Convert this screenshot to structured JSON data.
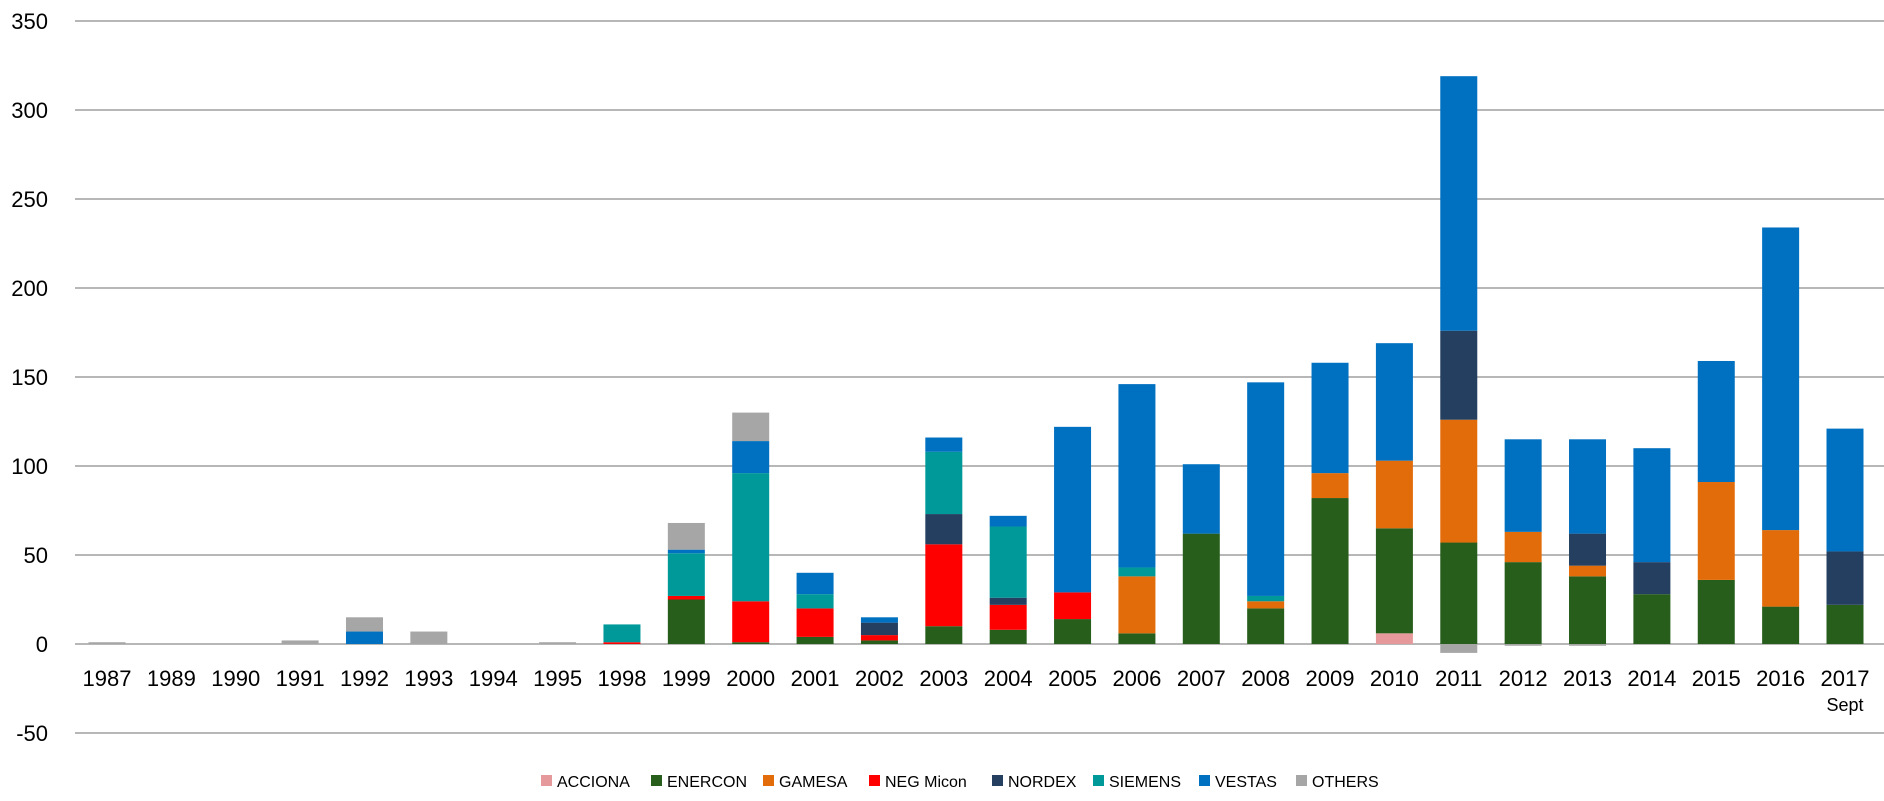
{
  "chart_data": {
    "type": "bar",
    "stacked": true,
    "title": "",
    "xlabel": "",
    "ylabel": "",
    "ylim": [
      -50,
      350
    ],
    "yticks": [
      350,
      300,
      250,
      200,
      150,
      100,
      50,
      0,
      -50
    ],
    "grid": true,
    "legend_position": "bottom",
    "categories": [
      "1987",
      "1989",
      "1990",
      "1991",
      "1992",
      "1993",
      "1994",
      "1995",
      "1998",
      "1999",
      "2000",
      "2001",
      "2002",
      "2003",
      "2004",
      "2005",
      "2006",
      "2007",
      "2008",
      "2009",
      "2010",
      "2011",
      "2012",
      "2013",
      "2014",
      "2015",
      "2016",
      "2017"
    ],
    "category_sublabels": {
      "2017": "Sept"
    },
    "series": [
      {
        "name": "ACCIONA",
        "color": "#e6999a",
        "values": [
          0,
          0,
          0,
          0,
          0,
          0,
          0,
          0,
          0,
          0,
          0,
          0,
          0,
          0,
          0,
          0,
          0,
          0,
          0,
          0,
          6,
          0,
          0,
          0,
          0,
          0,
          0,
          0
        ]
      },
      {
        "name": "ENERCON",
        "color": "#275e1c",
        "values": [
          0,
          0,
          0,
          0,
          0,
          0,
          0,
          0,
          0,
          25,
          1,
          4,
          2,
          10,
          8,
          14,
          6,
          62,
          20,
          82,
          59,
          57,
          46,
          38,
          28,
          36,
          21,
          22
        ]
      },
      {
        "name": "GAMESA",
        "color": "#e36c0a",
        "values": [
          0,
          0,
          0,
          0,
          0,
          0,
          0,
          0,
          0,
          0,
          0,
          0,
          0,
          0,
          0,
          0,
          32,
          0,
          4,
          14,
          38,
          69,
          17,
          6,
          0,
          55,
          43,
          0
        ]
      },
      {
        "name": "NEG Micon",
        "color": "#ff0000",
        "values": [
          0,
          0,
          0,
          0,
          0,
          0,
          0,
          0,
          1,
          2,
          23,
          16,
          3,
          46,
          14,
          15,
          0,
          0,
          0,
          0,
          0,
          0,
          0,
          0,
          0,
          0,
          0,
          0
        ]
      },
      {
        "name": "NORDEX",
        "color": "#243f60",
        "values": [
          0,
          0,
          0,
          0,
          0,
          0,
          0,
          0,
          0,
          0,
          0,
          0,
          7,
          17,
          4,
          0,
          0,
          0,
          0,
          0,
          0,
          50,
          0,
          18,
          18,
          0,
          0,
          30
        ]
      },
      {
        "name": "SIEMENS",
        "color": "#009999",
        "values": [
          0,
          0,
          0,
          0,
          0,
          0,
          0,
          0,
          10,
          24,
          72,
          8,
          0,
          35,
          40,
          0,
          5,
          0,
          3,
          0,
          0,
          0,
          0,
          0,
          0,
          0,
          0,
          0
        ]
      },
      {
        "name": "VESTAS",
        "color": "#0070c0",
        "values": [
          0,
          0,
          0,
          0,
          7,
          0,
          0,
          0,
          0,
          2,
          18,
          12,
          3,
          8,
          6,
          93,
          103,
          39,
          120,
          62,
          66,
          143,
          52,
          53,
          64,
          68,
          170,
          69
        ]
      },
      {
        "name": "OTHERS",
        "color": "#a6a6a6",
        "values": [
          1,
          0,
          0,
          2,
          8,
          7,
          0,
          1,
          0,
          15,
          16,
          0,
          0,
          0,
          0,
          0,
          0,
          0,
          0,
          0,
          0,
          -5,
          -1,
          -1,
          0,
          0,
          0,
          0
        ]
      }
    ]
  }
}
